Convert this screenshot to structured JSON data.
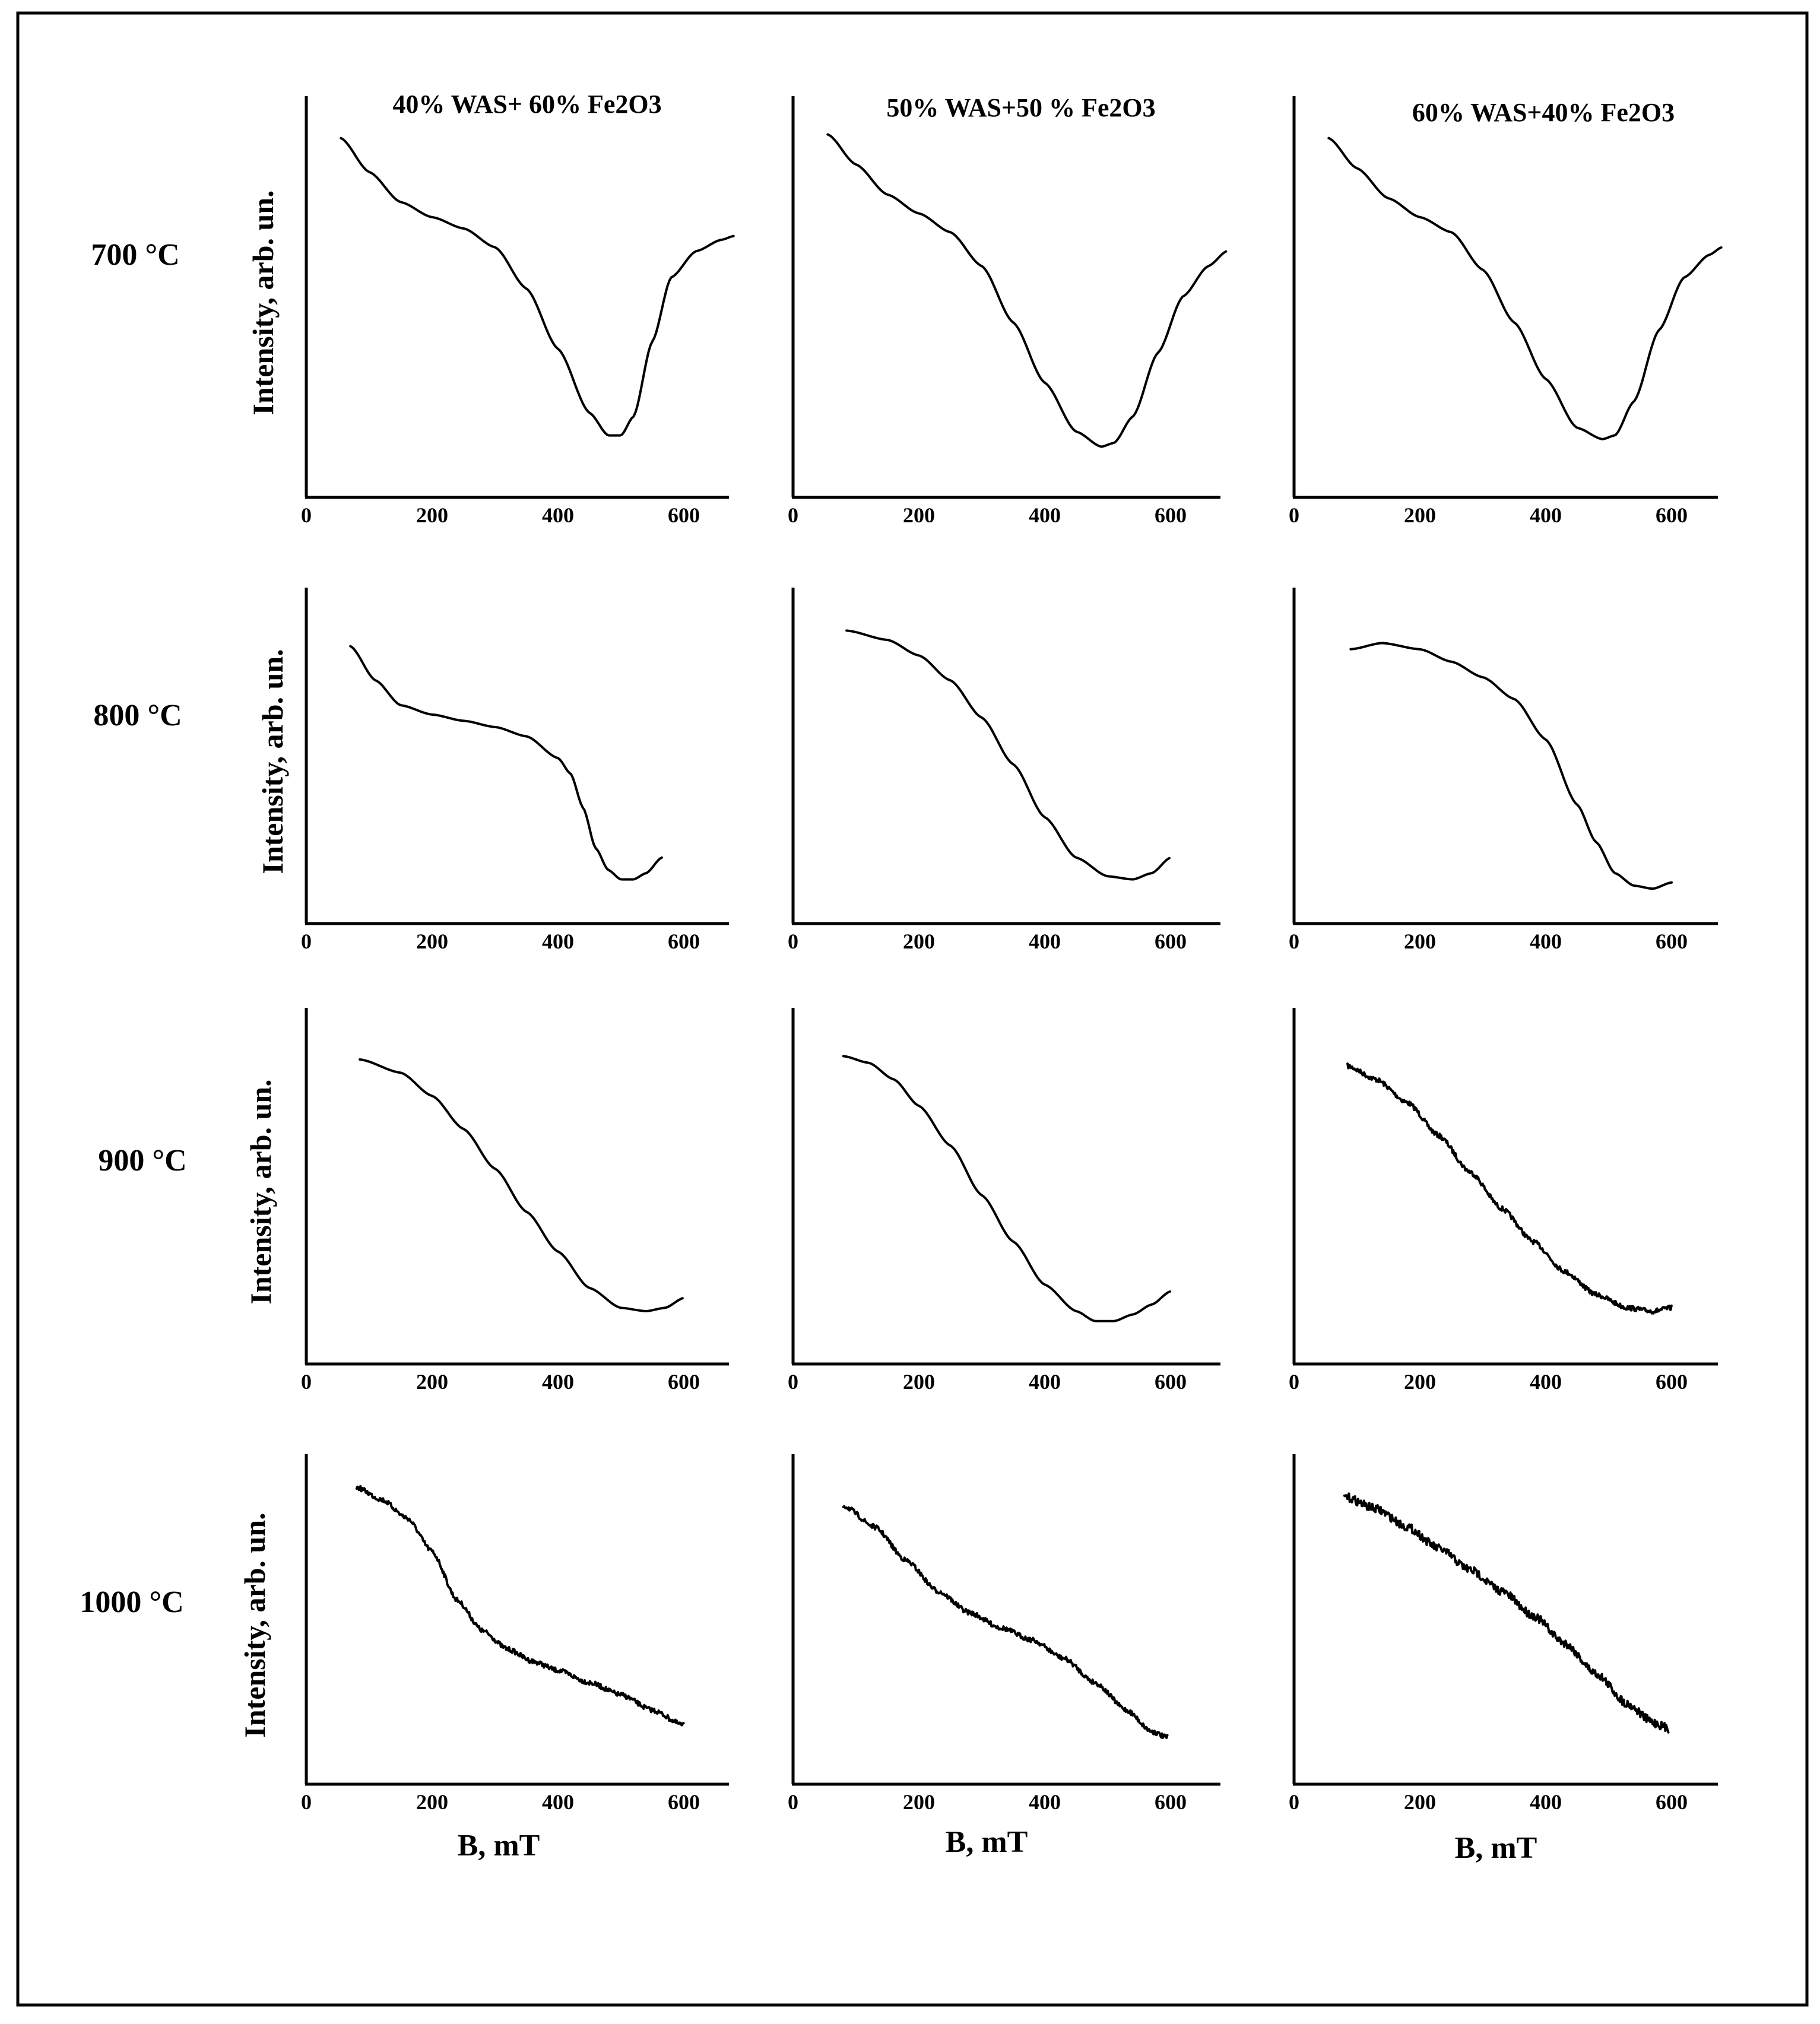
{
  "chart_data": {
    "type": "line",
    "figure_grid": "4 rows x 3 columns",
    "columns": [
      "40% WAS+ 60% Fe2O3",
      "50% WAS+50 % Fe2O3",
      "60% WAS+40% Fe2O3"
    ],
    "rows": [
      "700 °C",
      "800 °C",
      "900 °C",
      "1000 °C"
    ],
    "xlabel": "B, mT",
    "ylabel": "Intensity, arb. un.",
    "xlim": [
      0,
      680
    ],
    "ylim": [
      0,
      1
    ],
    "xticks": [
      "0",
      "200",
      "400",
      "600"
    ],
    "panels": [
      {
        "row": 0,
        "col": 0,
        "noisy": false,
        "x": [
          55,
          100,
          150,
          200,
          250,
          300,
          350,
          400,
          450,
          480,
          500,
          520,
          550,
          580,
          620,
          660,
          680
        ],
        "y": [
          0.92,
          0.83,
          0.75,
          0.71,
          0.68,
          0.63,
          0.52,
          0.36,
          0.19,
          0.13,
          0.13,
          0.18,
          0.38,
          0.55,
          0.62,
          0.65,
          0.66
        ]
      },
      {
        "row": 0,
        "col": 1,
        "noisy": false,
        "x": [
          55,
          100,
          150,
          200,
          250,
          300,
          350,
          400,
          450,
          490,
          510,
          540,
          580,
          620,
          660,
          690
        ],
        "y": [
          0.93,
          0.85,
          0.77,
          0.72,
          0.67,
          0.58,
          0.43,
          0.27,
          0.14,
          0.1,
          0.11,
          0.18,
          0.35,
          0.5,
          0.58,
          0.62
        ]
      },
      {
        "row": 0,
        "col": 2,
        "noisy": false,
        "x": [
          55,
          100,
          150,
          200,
          250,
          300,
          350,
          400,
          450,
          490,
          510,
          540,
          580,
          620,
          660,
          680
        ],
        "y": [
          0.92,
          0.84,
          0.76,
          0.71,
          0.67,
          0.57,
          0.43,
          0.28,
          0.15,
          0.12,
          0.13,
          0.22,
          0.41,
          0.55,
          0.61,
          0.63
        ]
      },
      {
        "row": 1,
        "col": 0,
        "noisy": false,
        "x": [
          70,
          110,
          150,
          200,
          250,
          300,
          350,
          400,
          420,
          440,
          460,
          480,
          500,
          520,
          540,
          565
        ],
        "y": [
          0.85,
          0.74,
          0.66,
          0.63,
          0.61,
          0.59,
          0.56,
          0.49,
          0.44,
          0.33,
          0.2,
          0.13,
          0.1,
          0.1,
          0.12,
          0.17
        ]
      },
      {
        "row": 1,
        "col": 1,
        "noisy": false,
        "x": [
          85,
          150,
          200,
          250,
          300,
          350,
          400,
          450,
          500,
          540,
          570,
          600
        ],
        "y": [
          0.9,
          0.87,
          0.82,
          0.74,
          0.62,
          0.47,
          0.3,
          0.17,
          0.11,
          0.1,
          0.12,
          0.17
        ]
      },
      {
        "row": 1,
        "col": 2,
        "noisy": false,
        "x": [
          90,
          140,
          200,
          250,
          300,
          350,
          400,
          450,
          480,
          510,
          540,
          570,
          600
        ],
        "y": [
          0.84,
          0.86,
          0.84,
          0.8,
          0.75,
          0.68,
          0.55,
          0.34,
          0.22,
          0.12,
          0.08,
          0.07,
          0.09
        ]
      },
      {
        "row": 2,
        "col": 0,
        "noisy": false,
        "x": [
          85,
          150,
          200,
          250,
          300,
          350,
          400,
          450,
          500,
          540,
          570,
          600
        ],
        "y": [
          0.88,
          0.84,
          0.77,
          0.67,
          0.55,
          0.42,
          0.3,
          0.19,
          0.13,
          0.12,
          0.13,
          0.16
        ]
      },
      {
        "row": 2,
        "col": 1,
        "noisy": false,
        "x": [
          80,
          120,
          160,
          200,
          250,
          300,
          350,
          400,
          450,
          480,
          510,
          540,
          570,
          600
        ],
        "y": [
          0.89,
          0.87,
          0.82,
          0.74,
          0.62,
          0.47,
          0.33,
          0.2,
          0.12,
          0.09,
          0.09,
          0.11,
          0.14,
          0.18
        ]
      },
      {
        "row": 2,
        "col": 2,
        "noisy": true,
        "x": [
          85,
          130,
          180,
          230,
          280,
          330,
          380,
          430,
          480,
          530,
          570,
          600
        ],
        "y": [
          0.86,
          0.82,
          0.75,
          0.65,
          0.54,
          0.43,
          0.33,
          0.24,
          0.17,
          0.13,
          0.12,
          0.13
        ]
      },
      {
        "row": 3,
        "col": 0,
        "noisy": true,
        "x": [
          80,
          120,
          160,
          200,
          240,
          280,
          320,
          360,
          400,
          450,
          500,
          550,
          600
        ],
        "y": [
          0.93,
          0.89,
          0.83,
          0.72,
          0.56,
          0.46,
          0.4,
          0.36,
          0.33,
          0.29,
          0.25,
          0.2,
          0.15
        ]
      },
      {
        "row": 3,
        "col": 1,
        "noisy": true,
        "x": [
          80,
          130,
          180,
          230,
          280,
          330,
          380,
          430,
          480,
          530,
          570,
          595
        ],
        "y": [
          0.87,
          0.8,
          0.69,
          0.59,
          0.52,
          0.47,
          0.43,
          0.37,
          0.29,
          0.2,
          0.13,
          0.11
        ]
      },
      {
        "row": 3,
        "col": 2,
        "noisy": true,
        "x": [
          80,
          130,
          180,
          230,
          280,
          330,
          380,
          430,
          480,
          530,
          570,
          595
        ],
        "y": [
          0.9,
          0.86,
          0.8,
          0.73,
          0.66,
          0.59,
          0.51,
          0.42,
          0.32,
          0.22,
          0.16,
          0.14
        ]
      }
    ]
  }
}
